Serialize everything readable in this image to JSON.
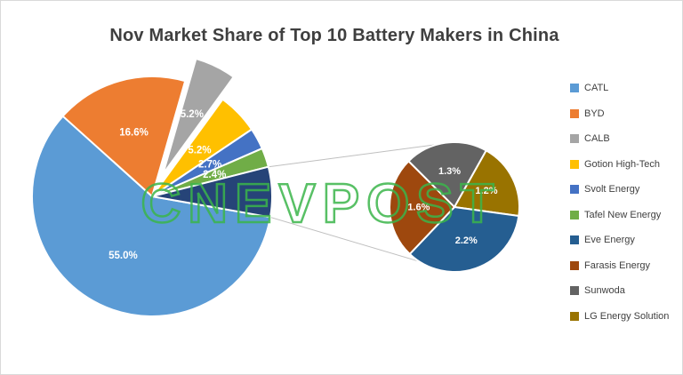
{
  "watermark": "CNEVPOST",
  "chart_data": {
    "type": "pie",
    "variant": "pie-of-pie",
    "title": "Nov Market Share of Top 10 Battery Makers in China",
    "unit": "%",
    "label_format": "{value}%",
    "legend_position": "right",
    "series": [
      {
        "name": "CATL",
        "value": 55.0,
        "color": "#5B9BD5"
      },
      {
        "name": "BYD",
        "value": 16.6,
        "color": "#ED7D31"
      },
      {
        "name": "CALB",
        "value": 5.2,
        "color": "#A5A5A5"
      },
      {
        "name": "Gotion High-Tech",
        "value": 5.2,
        "color": "#FFC000"
      },
      {
        "name": "Svolt Energy",
        "value": 2.7,
        "color": "#4472C4"
      },
      {
        "name": "Tafel New Energy",
        "value": 2.4,
        "color": "#70AD47"
      },
      {
        "name": "Eve Energy",
        "value": 2.2,
        "color": "#255E91"
      },
      {
        "name": "Farasis Energy",
        "value": 1.6,
        "color": "#9E480E"
      },
      {
        "name": "Sunwoda",
        "value": 1.3,
        "color": "#636363"
      },
      {
        "name": "LG Energy Solution",
        "value": 1.2,
        "color": "#997300"
      }
    ],
    "main_pie": {
      "order": [
        "CATL",
        "BYD",
        "CALB",
        "Gotion High-Tech",
        "Svolt Energy",
        "Tafel New Energy",
        "Other"
      ],
      "start_angle": 100,
      "exploded": [
        "CALB"
      ],
      "other_color": "#264478"
    },
    "secondary_pie": {
      "group": [
        "Eve Energy",
        "Farasis Energy",
        "Sunwoda",
        "LG Energy Solution"
      ],
      "order": [
        "Sunwoda",
        "LG Energy Solution",
        "Eve Energy",
        "Farasis Energy"
      ],
      "start_angle": -45
    },
    "colors": {
      "connector": "#BFBFBF",
      "slice_border": "#FFFFFF",
      "title_text": "#3F3F3F",
      "legend_text": "#404040",
      "watermark_green": "#3BB54A"
    }
  }
}
